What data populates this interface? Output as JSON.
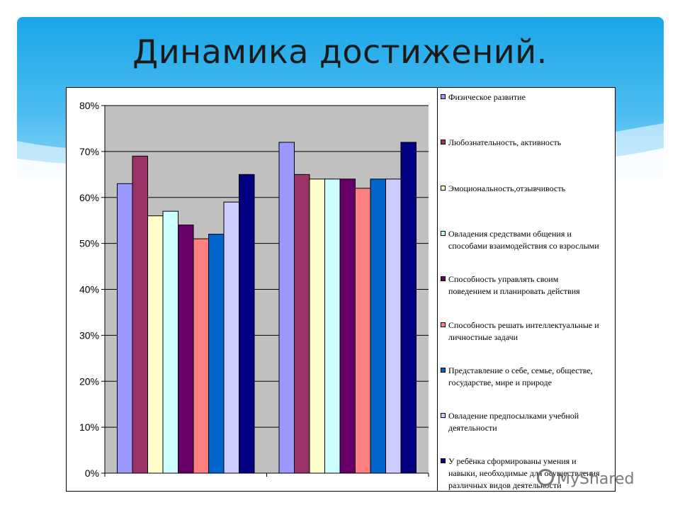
{
  "slide": {
    "title": "Динамика достижений."
  },
  "watermark": "MyShared",
  "chart_data": {
    "type": "bar",
    "categories": [
      "",
      ""
    ],
    "ylim": [
      0,
      80
    ],
    "y_unit": "%",
    "yticks": [
      "0%",
      "10%",
      "20%",
      "30%",
      "40%",
      "50%",
      "60%",
      "70%",
      "80%"
    ],
    "grid": true,
    "plot_background": "#c0c0c0",
    "legend_position": "right",
    "series": [
      {
        "name": "Физическое развитие",
        "color": "#9999ff",
        "values": [
          63,
          72
        ]
      },
      {
        "name": "Любознательность, активность",
        "color": "#993366",
        "values": [
          69,
          65
        ]
      },
      {
        "name": "Эмоциональность,отзывчивость",
        "color": "#ffffcc",
        "values": [
          56,
          64
        ]
      },
      {
        "name": "Овладения средствами общения и\nспособами взаимодействия со взрослыми",
        "color": "#ccffff",
        "values": [
          57,
          64
        ]
      },
      {
        "name": "Способность управлять своим\nповедением и планировать действия",
        "color": "#660066",
        "values": [
          54,
          64
        ]
      },
      {
        "name": "Способность решать интеллектуальные и\nличностные задачи",
        "color": "#ff8080",
        "values": [
          51,
          62
        ]
      },
      {
        "name": "Представление о себе, семье, обществе,\nгосударстве, мире и природе",
        "color": "#0066cc",
        "values": [
          52,
          64
        ]
      },
      {
        "name": "Овладение предпосылками учебной\nдеятельности",
        "color": "#ccccff",
        "values": [
          59,
          64
        ]
      },
      {
        "name": "У ребёнка сформированы умения и\nнавыки, необходимые для осуществления\nразличных видов деятельности",
        "color": "#000080",
        "values": [
          65,
          72
        ]
      }
    ]
  }
}
